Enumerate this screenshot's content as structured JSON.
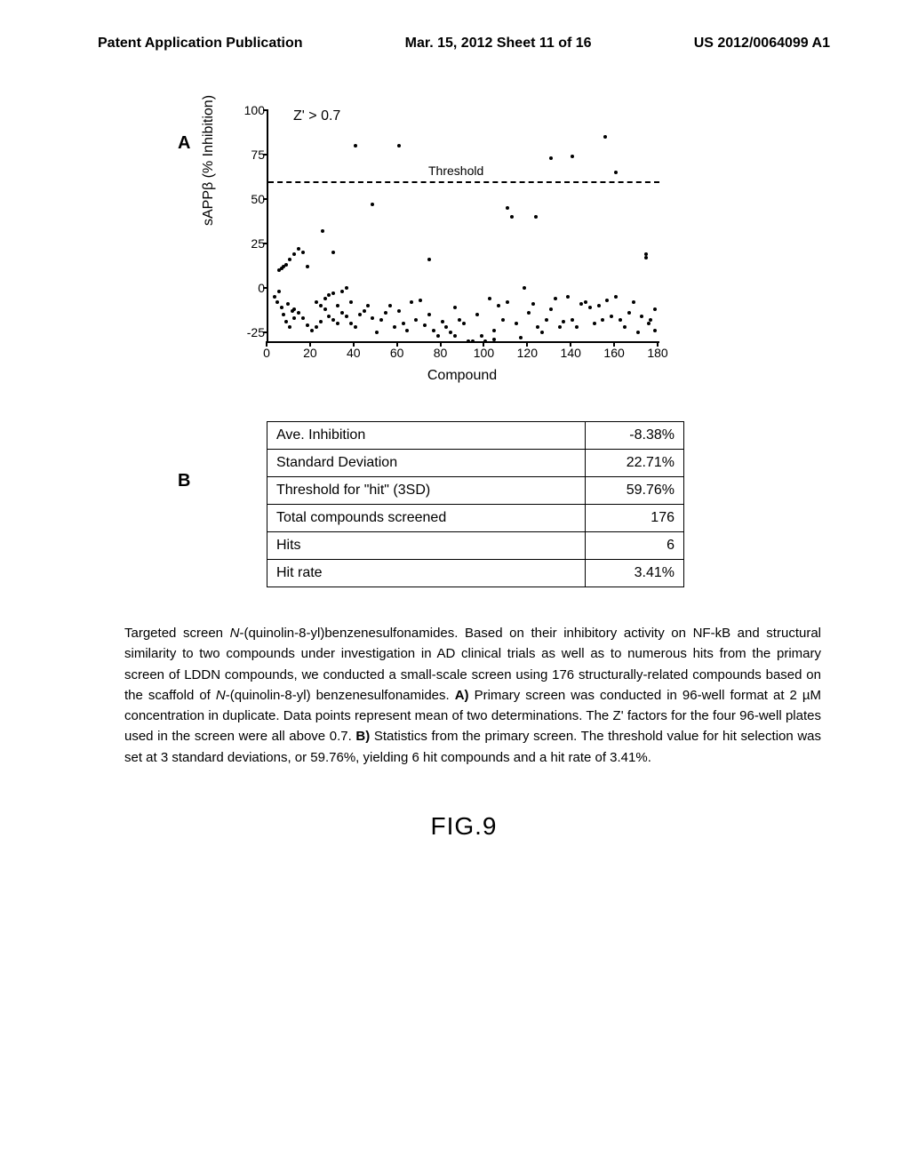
{
  "header": {
    "left": "Patent Application Publication",
    "center": "Mar. 15, 2012  Sheet 11 of 16",
    "right": "US 2012/0064099 A1"
  },
  "panelA": {
    "label": "A",
    "chart": {
      "type": "scatter",
      "xlim": [
        0,
        180
      ],
      "ylim": [
        -30,
        100
      ],
      "x_ticks": [
        0,
        20,
        40,
        60,
        80,
        100,
        120,
        140,
        160,
        180
      ],
      "y_ticks": [
        -25,
        0,
        25,
        50,
        75,
        100
      ],
      "x_label": "Compound",
      "y_label": "sAPPβ (% Inhibition)",
      "z_annotation": "Z' > 0.7",
      "threshold_label": "Threshold",
      "threshold_value": 59.76,
      "marker_color": "#000000",
      "marker_size": 4,
      "background_color": "#ffffff",
      "points": [
        [
          3,
          -5
        ],
        [
          4,
          -8
        ],
        [
          5,
          -2
        ],
        [
          6,
          -11
        ],
        [
          7,
          -15
        ],
        [
          8,
          -19
        ],
        [
          9,
          -9
        ],
        [
          10,
          -22
        ],
        [
          11,
          -13
        ],
        [
          12,
          -17
        ],
        [
          5,
          10
        ],
        [
          6,
          11
        ],
        [
          7,
          12
        ],
        [
          8,
          13
        ],
        [
          10,
          16
        ],
        [
          12,
          19
        ],
        [
          14,
          22
        ],
        [
          16,
          20
        ],
        [
          18,
          12
        ],
        [
          12,
          -12
        ],
        [
          14,
          -14
        ],
        [
          16,
          -17
        ],
        [
          18,
          -21
        ],
        [
          22,
          -8
        ],
        [
          24,
          -10
        ],
        [
          26,
          -12
        ],
        [
          28,
          -16
        ],
        [
          30,
          -18
        ],
        [
          32,
          -20
        ],
        [
          20,
          -24
        ],
        [
          22,
          -22
        ],
        [
          24,
          -19
        ],
        [
          26,
          -6
        ],
        [
          28,
          -4
        ],
        [
          30,
          -3
        ],
        [
          32,
          -10
        ],
        [
          34,
          -14
        ],
        [
          36,
          -16
        ],
        [
          38,
          -20
        ],
        [
          25,
          32
        ],
        [
          30,
          20
        ],
        [
          34,
          -2
        ],
        [
          36,
          0
        ],
        [
          38,
          -8
        ],
        [
          40,
          -22
        ],
        [
          42,
          -15
        ],
        [
          44,
          -13
        ],
        [
          46,
          -10
        ],
        [
          48,
          -17
        ],
        [
          40,
          80
        ],
        [
          48,
          47
        ],
        [
          50,
          -25
        ],
        [
          52,
          -18
        ],
        [
          54,
          -14
        ],
        [
          56,
          -10
        ],
        [
          58,
          -22
        ],
        [
          60,
          -13
        ],
        [
          60,
          80
        ],
        [
          62,
          -20
        ],
        [
          64,
          -24
        ],
        [
          66,
          -8
        ],
        [
          68,
          -18
        ],
        [
          70,
          -7
        ],
        [
          72,
          -21
        ],
        [
          74,
          16
        ],
        [
          74,
          -15
        ],
        [
          76,
          -24
        ],
        [
          78,
          -27
        ],
        [
          80,
          -19
        ],
        [
          82,
          -22
        ],
        [
          84,
          -25
        ],
        [
          86,
          -11
        ],
        [
          86,
          -27
        ],
        [
          88,
          -18
        ],
        [
          90,
          -20
        ],
        [
          92,
          -30
        ],
        [
          94,
          -30
        ],
        [
          96,
          -15
        ],
        [
          98,
          -27
        ],
        [
          100,
          -30
        ],
        [
          102,
          -6
        ],
        [
          104,
          -24
        ],
        [
          104,
          -29
        ],
        [
          106,
          -10
        ],
        [
          108,
          -18
        ],
        [
          110,
          -8
        ],
        [
          110,
          45
        ],
        [
          112,
          40
        ],
        [
          114,
          -20
        ],
        [
          116,
          -28
        ],
        [
          118,
          0
        ],
        [
          120,
          -14
        ],
        [
          122,
          -9
        ],
        [
          124,
          -22
        ],
        [
          123,
          40
        ],
        [
          126,
          -25
        ],
        [
          128,
          -18
        ],
        [
          130,
          -12
        ],
        [
          130,
          73
        ],
        [
          132,
          -6
        ],
        [
          134,
          -22
        ],
        [
          136,
          -19
        ],
        [
          138,
          -5
        ],
        [
          140,
          74
        ],
        [
          140,
          -18
        ],
        [
          142,
          -22
        ],
        [
          144,
          -9
        ],
        [
          146,
          -8
        ],
        [
          148,
          -11
        ],
        [
          150,
          -20
        ],
        [
          152,
          -10
        ],
        [
          154,
          -18
        ],
        [
          155,
          85
        ],
        [
          156,
          -7
        ],
        [
          158,
          -16
        ],
        [
          160,
          -5
        ],
        [
          160,
          65
        ],
        [
          162,
          -18
        ],
        [
          164,
          -22
        ],
        [
          166,
          -14
        ],
        [
          168,
          -8
        ],
        [
          170,
          -25
        ],
        [
          172,
          -16
        ],
        [
          174,
          17
        ],
        [
          174,
          19
        ],
        [
          175,
          -20
        ],
        [
          176,
          -18
        ],
        [
          178,
          -12
        ],
        [
          178,
          -24
        ]
      ]
    }
  },
  "panelB": {
    "label": "B",
    "table": {
      "rows": [
        [
          "Ave. Inhibition",
          "-8.38%"
        ],
        [
          "Standard Deviation",
          "22.71%"
        ],
        [
          "Threshold for \"hit\" (3SD)",
          "59.76%"
        ],
        [
          "Total compounds screened",
          "176"
        ],
        [
          "Hits",
          "6"
        ],
        [
          "Hit rate",
          "3.41%"
        ]
      ],
      "border_color": "#000000",
      "cell_padding": 6,
      "font_size": 16
    }
  },
  "caption": {
    "text_parts": {
      "p1a": "Targeted screen ",
      "p1b": "N",
      "p1c": "-(quinolin-8-yl)benzenesulfonamides. Based on their inhibitory activity on NF-kB and structural similarity to two compounds under investigation in AD clinical trials as well as to numerous hits from the primary screen of LDDN compounds, we conducted a small-scale screen using 176 structurally-related compounds based on the scaffold of ",
      "p1d": "N",
      "p1e": "-(quinolin-8-yl) benzenesulfonamides. ",
      "p2a": "A)",
      "p2b": " Primary screen was conducted in 96-well format at 2 µM concentration in duplicate. Data points represent mean of two determinations. The Z' factors for the four 96-well plates used in the screen were all above 0.7. ",
      "p3a": "B)",
      "p3b": " Statistics from the primary screen. The threshold value for hit selection was set at 3 standard deviations, or 59.76%, yielding 6 hit compounds and a hit rate of 3.41%."
    }
  },
  "figure_label": "FIG.9"
}
